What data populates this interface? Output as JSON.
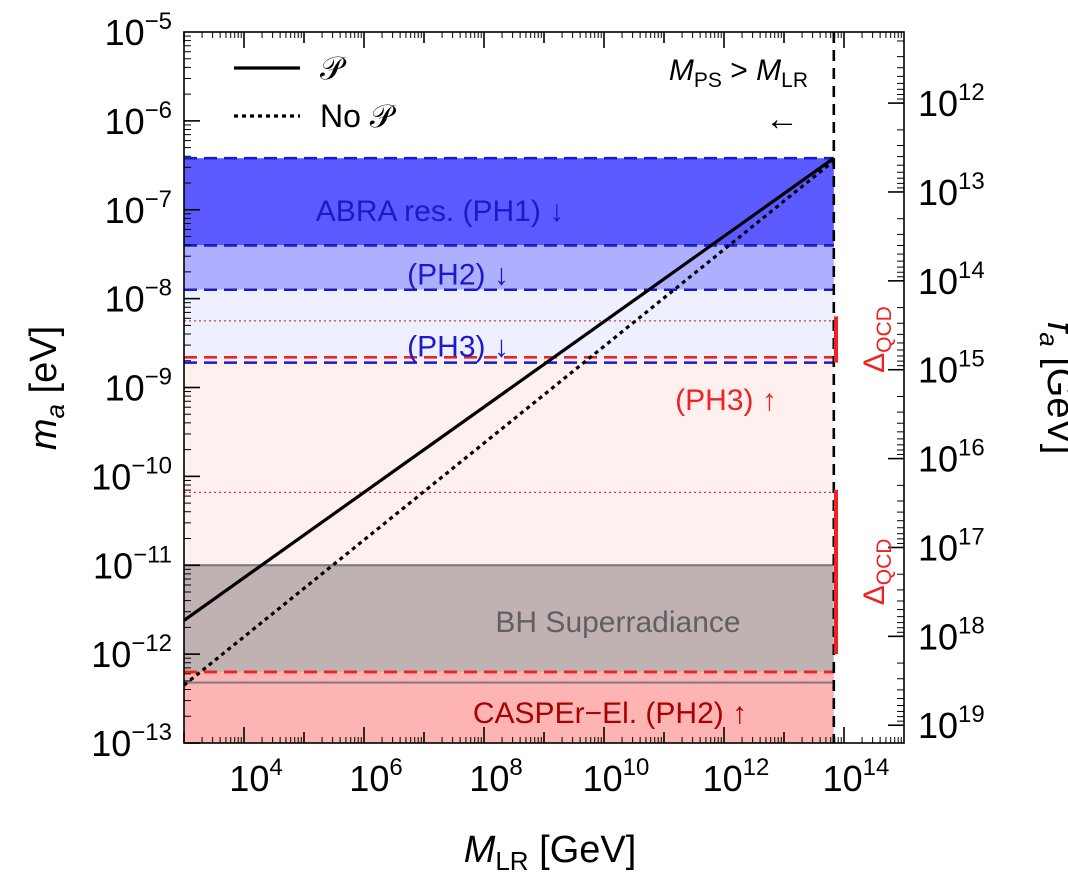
{
  "chart_data": {
    "type": "line",
    "scale": "log-log",
    "xlabel": {
      "main": "M",
      "sub": "LR",
      "unit": "[GeV]"
    },
    "ylabel": {
      "main": "m",
      "sub": "a",
      "unit": "[eV]"
    },
    "y2label": {
      "main": "f",
      "sub": "a",
      "unit": "[GeV]"
    },
    "xlim_exp": [
      3,
      15
    ],
    "ylim_exp": [
      -13,
      -5
    ],
    "y2lim_exp": [
      11.2,
      19.2
    ],
    "x_ticks": [
      {
        "base": "10",
        "exp": "4",
        "value": 4
      },
      {
        "base": "10",
        "exp": "6",
        "value": 6
      },
      {
        "base": "10",
        "exp": "8",
        "value": 8
      },
      {
        "base": "10",
        "exp": "10",
        "value": 10
      },
      {
        "base": "10",
        "exp": "12",
        "value": 12
      },
      {
        "base": "10",
        "exp": "14",
        "value": 14
      }
    ],
    "y_ticks": [
      {
        "base": "10",
        "exp": "−13",
        "value": -13
      },
      {
        "base": "10",
        "exp": "−12",
        "value": -12
      },
      {
        "base": "10",
        "exp": "−11",
        "value": -11
      },
      {
        "base": "10",
        "exp": "−10",
        "value": -10
      },
      {
        "base": "10",
        "exp": "−9",
        "value": -9
      },
      {
        "base": "10",
        "exp": "−8",
        "value": -8
      },
      {
        "base": "10",
        "exp": "−7",
        "value": -7
      },
      {
        "base": "10",
        "exp": "−6",
        "value": -6
      },
      {
        "base": "10",
        "exp": "−5",
        "value": -5
      }
    ],
    "y2_ticks": [
      {
        "base": "10",
        "exp": "12",
        "value": 12
      },
      {
        "base": "10",
        "exp": "13",
        "value": 13
      },
      {
        "base": "10",
        "exp": "14",
        "value": 14
      },
      {
        "base": "10",
        "exp": "15",
        "value": 15
      },
      {
        "base": "10",
        "exp": "16",
        "value": 16
      },
      {
        "base": "10",
        "exp": "17",
        "value": 17
      },
      {
        "base": "10",
        "exp": "18",
        "value": 18
      },
      {
        "base": "10",
        "exp": "19",
        "value": 19
      }
    ],
    "series": [
      {
        "name": "𝒫",
        "style": "solid",
        "color": "#000000",
        "x_exp": [
          3,
          13.83
        ],
        "y_exp": [
          -11.62,
          -6.42
        ]
      },
      {
        "name": "No 𝒫",
        "style": "dotted",
        "color": "#000000",
        "x_exp": [
          3,
          13.83
        ],
        "y_exp": [
          -12.35,
          -6.45
        ]
      }
    ],
    "bands": [
      {
        "id": "abra-ph1",
        "label": "ABRA res. (PH1) ↓",
        "ymin_exp": -7.4,
        "ymax_exp": -6.42,
        "fill": "#5a5aff",
        "edge": "#1a1acc",
        "label_color": "#1a1acc",
        "label_at_exp": -7.0
      },
      {
        "id": "abra-ph2",
        "label": "(PH2) ↓",
        "ymin_exp": -7.9,
        "ymax_exp": -7.4,
        "fill": "#afafff",
        "edge": "#1a1acc",
        "label_color": "#1a1acc",
        "label_at_exp": -7.72
      },
      {
        "id": "abra-ph3",
        "label": "(PH3) ↓",
        "ymin_exp": -8.72,
        "ymax_exp": -7.9,
        "fill": "#eff0ff",
        "edge": "#1a1acc",
        "label_color": "#1a1acc",
        "label_at_exp": -8.53
      },
      {
        "id": "casper-ph3",
        "label": "(PH3) ↑",
        "ymin_exp": -12.2,
        "ymax_exp": -8.66,
        "fill": "#fff0f0",
        "edge": "#ee2222",
        "label_color": "#ee2222",
        "label_at_exp": -9.13
      },
      {
        "id": "bh-superradiance",
        "label": "BH Superradiance",
        "ymin_exp": -12.32,
        "ymax_exp": -11.0,
        "fill": "#8c7f7f",
        "fill_opacity": 0.55,
        "edge": "#808080",
        "label_color": "#606060",
        "label_at_exp": -11.63
      },
      {
        "id": "casper-ph2",
        "label": "CASPEr−El. (PH2) ↑",
        "ymin_exp": -13,
        "ymax_exp": -12.2,
        "fill": "#ffb4b4",
        "edge": "#ee2222",
        "label_color": "#aa0000",
        "label_at_exp": -12.65
      }
    ],
    "thin_lines": [
      {
        "y_exp": -8.25,
        "color": "#ee3333"
      },
      {
        "y_exp": -10.18,
        "color": "#ee3333"
      }
    ],
    "delta_bars": [
      {
        "label_main": "Δ",
        "label_sub": "QCD",
        "ymin_exp": -8.72,
        "ymax_exp": -8.2,
        "color": "#ee2222"
      },
      {
        "label_main": "Δ",
        "label_sub": "QCD",
        "ymin_exp": -12.0,
        "ymax_exp": -10.15,
        "color": "#ee2222"
      }
    ],
    "vertical_line": {
      "x_exp": 13.83,
      "style": "dashed",
      "label_main": "M",
      "label_sub1": "PS",
      "label_op": ">",
      "label_sub2": "LR",
      "arrow": "←"
    },
    "legend": {
      "position": "top-left",
      "entries": [
        {
          "label": "𝒫",
          "style": "solid"
        },
        {
          "label": "No 𝒫",
          "style": "dotted"
        }
      ]
    }
  }
}
